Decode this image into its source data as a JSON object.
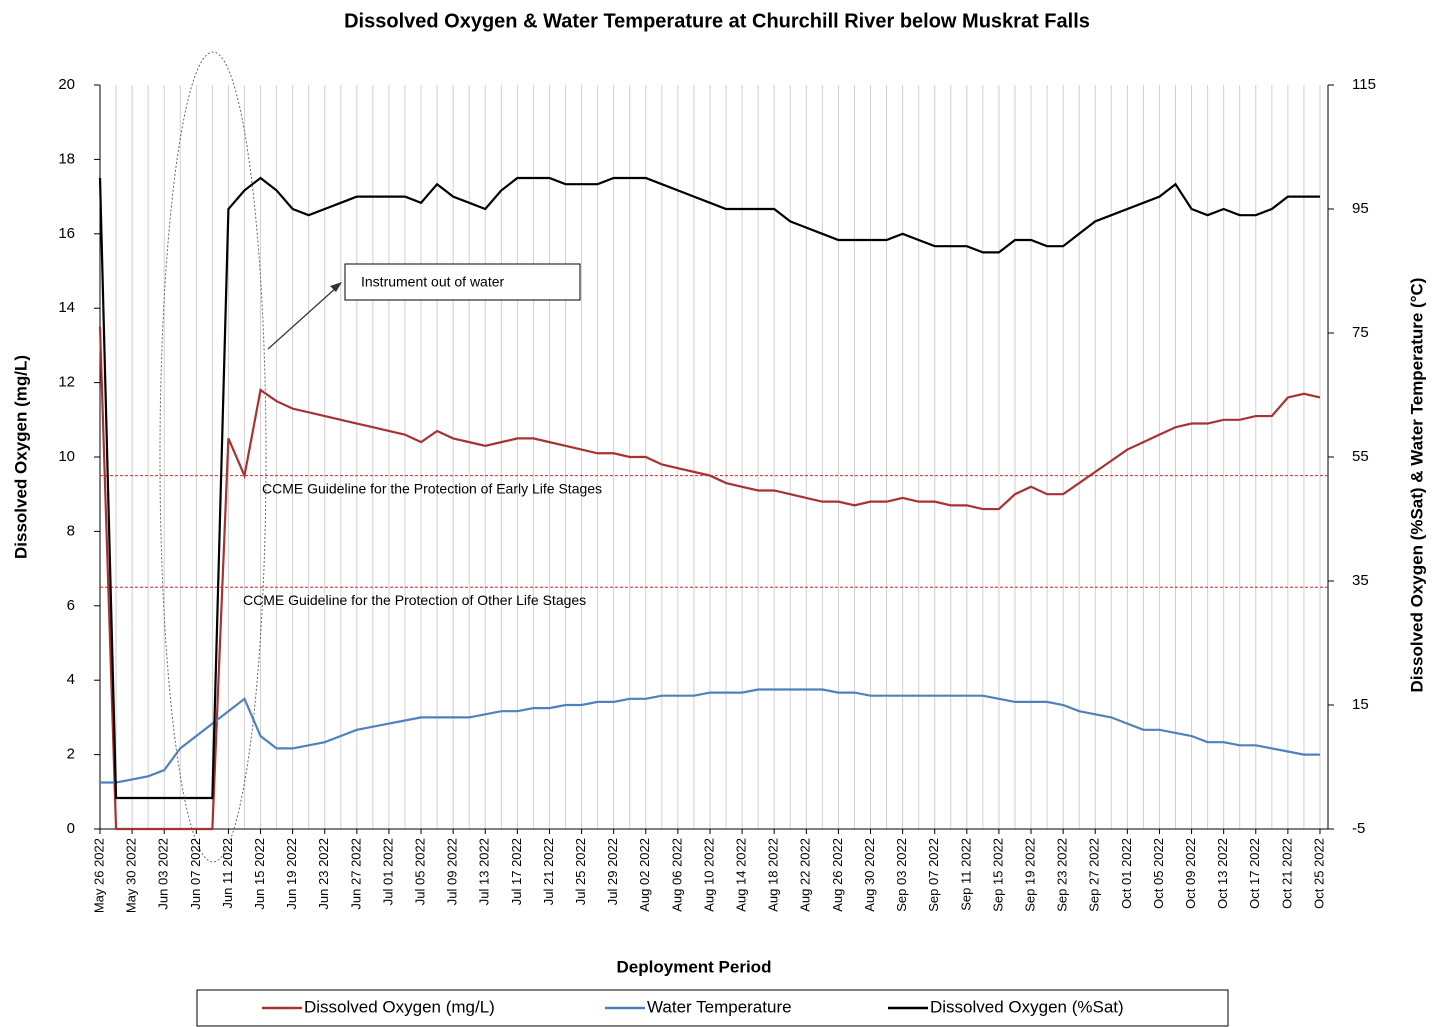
{
  "chart_data": {
    "type": "line",
    "title": "Dissolved Oxygen & Water Temperature at Churchill River below Muskrat Falls",
    "x_label": "Deployment Period",
    "y_label": "Dissolved  Oxygen (mg/L)",
    "y2_label": "Dissolved  Oxygen (%Sat) & Water Temperature (°C)",
    "x": [
      "2022-05-26",
      "2022-05-28",
      "2022-05-30",
      "2022-06-01",
      "2022-06-03",
      "2022-06-05",
      "2022-06-07",
      "2022-06-09",
      "2022-06-11",
      "2022-06-13",
      "2022-06-15",
      "2022-06-17",
      "2022-06-19",
      "2022-06-21",
      "2022-06-23",
      "2022-06-25",
      "2022-06-27",
      "2022-06-29",
      "2022-07-01",
      "2022-07-03",
      "2022-07-05",
      "2022-07-07",
      "2022-07-09",
      "2022-07-11",
      "2022-07-13",
      "2022-07-15",
      "2022-07-17",
      "2022-07-19",
      "2022-07-21",
      "2022-07-23",
      "2022-07-25",
      "2022-07-27",
      "2022-07-29",
      "2022-07-31",
      "2022-08-02",
      "2022-08-04",
      "2022-08-06",
      "2022-08-08",
      "2022-08-10",
      "2022-08-12",
      "2022-08-14",
      "2022-08-16",
      "2022-08-18",
      "2022-08-20",
      "2022-08-22",
      "2022-08-24",
      "2022-08-26",
      "2022-08-28",
      "2022-08-30",
      "2022-09-01",
      "2022-09-03",
      "2022-09-05",
      "2022-09-07",
      "2022-09-09",
      "2022-09-11",
      "2022-09-13",
      "2022-09-15",
      "2022-09-17",
      "2022-09-19",
      "2022-09-21",
      "2022-09-23",
      "2022-09-25",
      "2022-09-27",
      "2022-09-29",
      "2022-10-01",
      "2022-10-03",
      "2022-10-05",
      "2022-10-07",
      "2022-10-09",
      "2022-10-11",
      "2022-10-13",
      "2022-10-15",
      "2022-10-17",
      "2022-10-19",
      "2022-10-21",
      "2022-10-23",
      "2022-10-25"
    ],
    "series": [
      {
        "name": "Dissolved Oxygen (mg/L)",
        "color": "#a83232",
        "axis": "y",
        "values": [
          13.5,
          0,
          0,
          0,
          0,
          0,
          0,
          0,
          10.5,
          9.5,
          11.8,
          11.5,
          11.3,
          11.2,
          11.1,
          11.0,
          10.9,
          10.8,
          10.7,
          10.6,
          10.4,
          10.7,
          10.5,
          10.4,
          10.3,
          10.4,
          10.5,
          10.5,
          10.4,
          10.3,
          10.2,
          10.1,
          10.1,
          10.0,
          10.0,
          9.8,
          9.7,
          9.6,
          9.5,
          9.3,
          9.2,
          9.1,
          9.1,
          9.0,
          8.9,
          8.8,
          8.8,
          8.7,
          8.8,
          8.8,
          8.9,
          8.8,
          8.8,
          8.7,
          8.7,
          8.6,
          8.6,
          9.0,
          9.2,
          9.0,
          9.0,
          9.3,
          9.6,
          9.9,
          10.2,
          10.4,
          10.6,
          10.8,
          10.9,
          10.9,
          11.0,
          11.0,
          11.1,
          11.1,
          11.6,
          11.7,
          11.6
        ]
      },
      {
        "name": "Water Temperature",
        "color": "#4f81bd",
        "axis": "y2",
        "values": [
          2.5,
          2.5,
          3,
          3.5,
          4.5,
          8,
          10,
          12,
          14,
          16,
          10,
          8,
          8,
          8.5,
          9,
          10,
          11,
          11.5,
          12,
          12.5,
          13,
          13,
          13,
          13,
          13.5,
          14,
          14,
          14.5,
          14.5,
          15,
          15,
          15.5,
          15.5,
          16,
          16,
          16.5,
          16.5,
          16.5,
          17,
          17,
          17,
          17.5,
          17.5,
          17.5,
          17.5,
          17.5,
          17,
          17,
          16.5,
          16.5,
          16.5,
          16.5,
          16.5,
          16.5,
          16.5,
          16.5,
          16,
          15.5,
          15.5,
          15.5,
          15,
          14,
          13.5,
          13,
          12,
          11,
          11,
          10.5,
          10,
          9,
          9,
          8.5,
          8.5,
          8,
          7.5,
          7,
          7
        ]
      },
      {
        "name": "Dissolved Oxygen (%Sat)",
        "color": "#000000",
        "axis": "y2",
        "values": [
          100,
          0,
          0,
          0,
          0,
          0,
          0,
          0,
          95,
          98,
          100,
          98,
          95,
          94,
          95,
          96,
          97,
          97,
          97,
          97,
          96,
          99,
          97,
          96,
          95,
          98,
          100,
          100,
          100,
          99,
          99,
          99,
          100,
          100,
          100,
          99,
          98,
          97,
          96,
          95,
          95,
          95,
          95,
          93,
          92,
          91,
          90,
          90,
          90,
          90,
          91,
          90,
          89,
          89,
          89,
          88,
          88,
          90,
          90,
          89,
          89,
          91,
          93,
          94,
          95,
          96,
          97,
          99,
          95,
          94,
          95,
          94,
          94,
          95,
          97,
          97,
          97
        ]
      }
    ],
    "xlim": [
      "2022-05-26",
      "2022-10-26"
    ],
    "xticks": [
      {
        "value": "2022-05-26",
        "label": "May 26 2022"
      },
      {
        "value": "2022-05-30",
        "label": "May 30 2022"
      },
      {
        "value": "2022-06-03",
        "label": "Jun 03 2022"
      },
      {
        "value": "2022-06-07",
        "label": "Jun 07 2022"
      },
      {
        "value": "2022-06-11",
        "label": "Jun 11 2022"
      },
      {
        "value": "2022-06-15",
        "label": "Jun 15 2022"
      },
      {
        "value": "2022-06-19",
        "label": "Jun 19 2022"
      },
      {
        "value": "2022-06-23",
        "label": "Jun 23 2022"
      },
      {
        "value": "2022-06-27",
        "label": "Jun 27 2022"
      },
      {
        "value": "2022-07-01",
        "label": "Jul 01 2022"
      },
      {
        "value": "2022-07-05",
        "label": "Jul 05 2022"
      },
      {
        "value": "2022-07-09",
        "label": "Jul 09 2022"
      },
      {
        "value": "2022-07-13",
        "label": "Jul 13 2022"
      },
      {
        "value": "2022-07-17",
        "label": "Jul 17 2022"
      },
      {
        "value": "2022-07-21",
        "label": "Jul 21 2022"
      },
      {
        "value": "2022-07-25",
        "label": "Jul 25 2022"
      },
      {
        "value": "2022-07-29",
        "label": "Jul 29 2022"
      },
      {
        "value": "2022-08-02",
        "label": "Aug 02 2022"
      },
      {
        "value": "2022-08-06",
        "label": "Aug 06 2022"
      },
      {
        "value": "2022-08-10",
        "label": "Aug 10 2022"
      },
      {
        "value": "2022-08-14",
        "label": "Aug 14 2022"
      },
      {
        "value": "2022-08-18",
        "label": "Aug 18 2022"
      },
      {
        "value": "2022-08-22",
        "label": "Aug 22 2022"
      },
      {
        "value": "2022-08-26",
        "label": "Aug 26 2022"
      },
      {
        "value": "2022-08-30",
        "label": "Aug 30 2022"
      },
      {
        "value": "2022-09-03",
        "label": "Sep 03 2022"
      },
      {
        "value": "2022-09-07",
        "label": "Sep 07 2022"
      },
      {
        "value": "2022-09-11",
        "label": "Sep 11 2022"
      },
      {
        "value": "2022-09-15",
        "label": "Sep 15 2022"
      },
      {
        "value": "2022-09-19",
        "label": "Sep 19 2022"
      },
      {
        "value": "2022-09-23",
        "label": "Sep 23 2022"
      },
      {
        "value": "2022-09-27",
        "label": "Sep 27 2022"
      },
      {
        "value": "2022-10-01",
        "label": "Oct 01 2022"
      },
      {
        "value": "2022-10-05",
        "label": "Oct 05 2022"
      },
      {
        "value": "2022-10-09",
        "label": "Oct 09 2022"
      },
      {
        "value": "2022-10-13",
        "label": "Oct 13 2022"
      },
      {
        "value": "2022-10-17",
        "label": "Oct 17 2022"
      },
      {
        "value": "2022-10-21",
        "label": "Oct 21 2022"
      },
      {
        "value": "2022-10-25",
        "label": "Oct 25 2022"
      }
    ],
    "ylim": [
      0,
      20
    ],
    "yticks": [
      0,
      2,
      4,
      6,
      8,
      10,
      12,
      14,
      16,
      18,
      20
    ],
    "y2lim": [
      -5,
      115
    ],
    "y2ticks": [
      -5,
      15,
      35,
      55,
      75,
      95,
      115
    ],
    "grid": true,
    "legend": "bottom",
    "guidelines": [
      {
        "value": 9.5,
        "label": "CCME  Guideline  for the Protection of Early Life Stages",
        "color": "#e02020"
      },
      {
        "value": 6.5,
        "label": "CCME  Guideline  for the Protection of Other Life Stages",
        "color": "#e02020"
      }
    ],
    "annotation": "Instrument out of water"
  }
}
